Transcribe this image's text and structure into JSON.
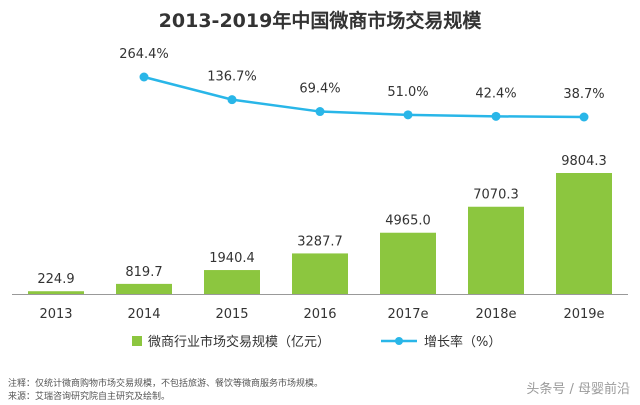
{
  "chart_data": {
    "type": "bar",
    "title": "2013-2019年中国微商市场交易规模",
    "categories": [
      "2013",
      "2014",
      "2015",
      "2016",
      "2017e",
      "2018e",
      "2019e"
    ],
    "series": [
      {
        "name": "微商行业市场交易规模（亿元）",
        "type": "bar",
        "values": [
          224.9,
          819.7,
          1940.4,
          3287.7,
          4965.0,
          7070.3,
          9804.3
        ],
        "labels": [
          "224.9",
          "819.7",
          "1940.4",
          "3287.7",
          "4965.0",
          "7070.3",
          "9804.3"
        ],
        "color": "#8cc63f"
      },
      {
        "name": "增长率（%）",
        "type": "line",
        "x": [
          "2014",
          "2015",
          "2016",
          "2017e",
          "2018e",
          "2019e"
        ],
        "values": [
          264.4,
          136.7,
          69.4,
          51.0,
          42.4,
          38.7
        ],
        "labels": [
          "264.4%",
          "136.7%",
          "69.4%",
          "51.0%",
          "42.4%",
          "38.7%"
        ],
        "color": "#29b6e8"
      }
    ],
    "grid": false,
    "legend_position": "bottom"
  },
  "footnotes": {
    "note": "注释：仅统计微商购物市场交易规模，不包括旅游、餐饮等微商服务市场规模。",
    "source": "来源：艾瑞咨询研究院自主研究及绘制。"
  },
  "watermark": "头条号 / 母婴前沿"
}
